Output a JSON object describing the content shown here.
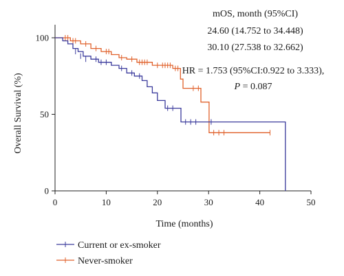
{
  "chart_data": {
    "type": "line",
    "chart_subtype": "kaplan-meier survival curve",
    "title": "",
    "xlabel": "Time (months)",
    "ylabel": "Overall Survival (%)",
    "xlim": [
      0,
      50
    ],
    "ylim": [
      0,
      100
    ],
    "x_ticks": [
      0,
      10,
      20,
      30,
      40,
      50
    ],
    "y_ticks": [
      0,
      50,
      100
    ],
    "grid": false,
    "legend_position": "bottom-left",
    "annotations": {
      "median_header": "mOS, month (95%CI)",
      "median_line_1": "24.60 (14.752 to 34.448)",
      "median_line_2": "30.10 (27.538 to 32.662)",
      "hr_line": "HR = 1.753 (95%CI:0.922 to 3.333),",
      "p_prefix": "P",
      "p_suffix": " = 0.087"
    },
    "series": [
      {
        "name": "Current or ex-smoker",
        "color": "#3a3a9c",
        "steps": [
          [
            0,
            100
          ],
          [
            1.5,
            98
          ],
          [
            2.5,
            96
          ],
          [
            3.5,
            93
          ],
          [
            4.5,
            91
          ],
          [
            5.5,
            88
          ],
          [
            7,
            86
          ],
          [
            8.5,
            84
          ],
          [
            11,
            82
          ],
          [
            12.5,
            80
          ],
          [
            14,
            77
          ],
          [
            15.5,
            75
          ],
          [
            17,
            72
          ],
          [
            18,
            68
          ],
          [
            19,
            64
          ],
          [
            20,
            59
          ],
          [
            21.5,
            54
          ],
          [
            24.6,
            45
          ],
          [
            45,
            45
          ],
          [
            45,
            0
          ]
        ],
        "censored": [
          [
            4,
            91
          ],
          [
            5,
            88
          ],
          [
            6,
            86
          ],
          [
            8,
            86
          ],
          [
            9,
            84
          ],
          [
            10,
            84
          ],
          [
            13,
            80
          ],
          [
            15,
            77
          ],
          [
            16.5,
            75
          ],
          [
            22,
            54
          ],
          [
            23,
            54
          ],
          [
            25.5,
            45
          ],
          [
            26.5,
            45
          ],
          [
            27.5,
            45
          ],
          [
            30.5,
            45
          ]
        ]
      },
      {
        "name": "Never-smoker",
        "color": "#e0602a",
        "steps": [
          [
            0,
            100
          ],
          [
            3,
            98
          ],
          [
            5,
            96
          ],
          [
            7,
            93
          ],
          [
            9,
            91
          ],
          [
            11,
            89
          ],
          [
            12.5,
            87
          ],
          [
            14,
            86
          ],
          [
            16,
            84
          ],
          [
            19,
            82
          ],
          [
            23,
            80
          ],
          [
            24.5,
            73
          ],
          [
            25,
            67
          ],
          [
            28.5,
            58
          ],
          [
            30.1,
            38
          ],
          [
            42,
            38
          ]
        ],
        "censored": [
          [
            2,
            100
          ],
          [
            2.5,
            100
          ],
          [
            3.5,
            98
          ],
          [
            4,
            98
          ],
          [
            6,
            96
          ],
          [
            8,
            93
          ],
          [
            10,
            91
          ],
          [
            10.5,
            91
          ],
          [
            13,
            87
          ],
          [
            15,
            86
          ],
          [
            16.5,
            84
          ],
          [
            17,
            84
          ],
          [
            17.5,
            84
          ],
          [
            18,
            84
          ],
          [
            20,
            82
          ],
          [
            21,
            82
          ],
          [
            21.5,
            82
          ],
          [
            22,
            82
          ],
          [
            22.5,
            82
          ],
          [
            23.5,
            80
          ],
          [
            24,
            80
          ],
          [
            27,
            67
          ],
          [
            28,
            67
          ],
          [
            31,
            38
          ],
          [
            32,
            38
          ],
          [
            33,
            38
          ],
          [
            42,
            38
          ]
        ]
      }
    ]
  }
}
